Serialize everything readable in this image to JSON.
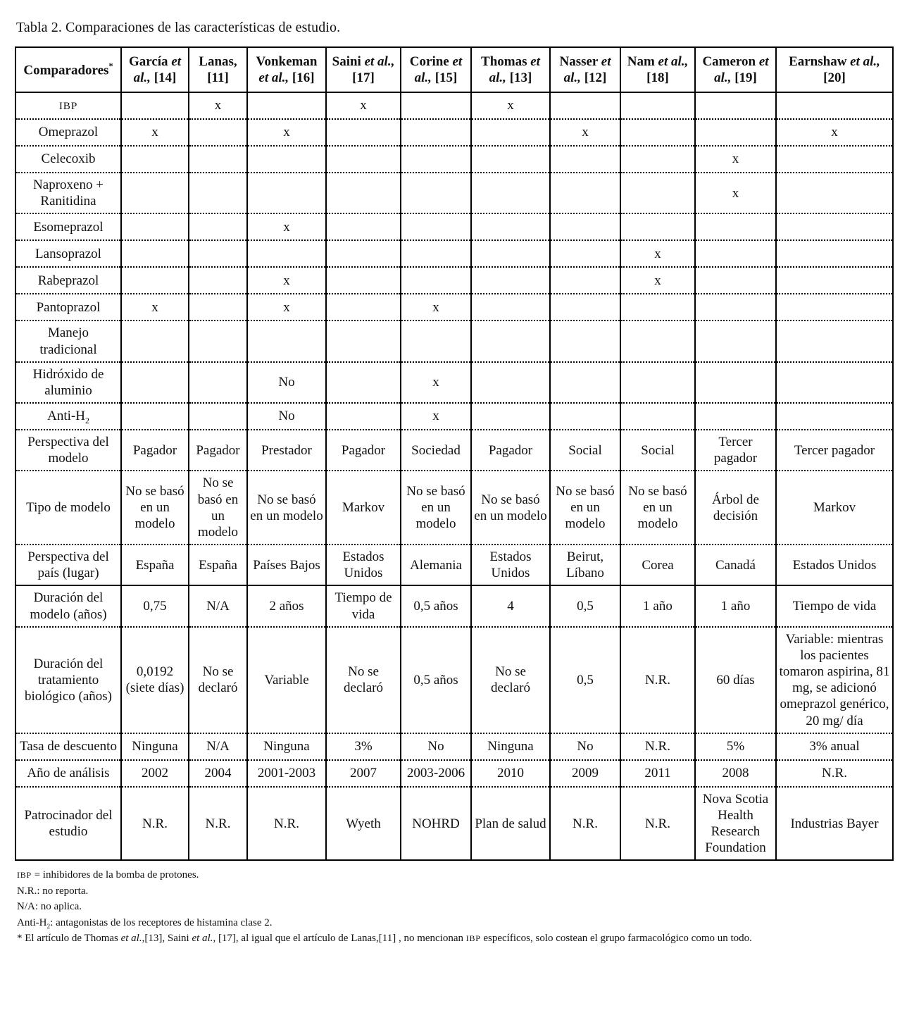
{
  "title": "Tabla 2. Comparaciones de las características de estudio.",
  "table": {
    "corner": {
      "label": "Comparadores",
      "superscript": "*"
    },
    "columns": [
      {
        "name": "García",
        "etal": "et al.,",
        "ref": "[14]"
      },
      {
        "name": "Lanas,",
        "etal": "",
        "ref": "[11]"
      },
      {
        "name": "Vonkeman",
        "etal": "et al.,",
        "ref": "[16]"
      },
      {
        "name": "Saini",
        "etal": "et al.,",
        "ref": "[17]"
      },
      {
        "name": "Corine",
        "etal": "et al.,",
        "ref": "[15]"
      },
      {
        "name": "Thomas",
        "etal": "et al.,",
        "ref": "[13]"
      },
      {
        "name": "Nasser",
        "etal": "et al.,",
        "ref": "[12]"
      },
      {
        "name": "Nam",
        "etal": "et al.,",
        "ref": "[18]"
      },
      {
        "name": "Cameron",
        "etal": "et al.,",
        "ref": "[19]"
      },
      {
        "name": "Earnshaw",
        "etal": "et al.,",
        "ref": "[20]"
      }
    ],
    "rows": [
      {
        "label": "IBP",
        "cells": [
          "",
          "x",
          "",
          "x",
          "",
          "x",
          "",
          "",
          "",
          ""
        ]
      },
      {
        "label": "Omeprazol",
        "cells": [
          "x",
          "",
          "x",
          "",
          "",
          "",
          "x",
          "",
          "",
          "x"
        ]
      },
      {
        "label": "Celecoxib",
        "cells": [
          "",
          "",
          "",
          "",
          "",
          "",
          "",
          "",
          "x",
          ""
        ]
      },
      {
        "label": "Naproxeno + Ranitidina",
        "cells": [
          "",
          "",
          "",
          "",
          "",
          "",
          "",
          "",
          "x",
          ""
        ]
      },
      {
        "label": "Esomeprazol",
        "cells": [
          "",
          "",
          "x",
          "",
          "",
          "",
          "",
          "",
          "",
          ""
        ]
      },
      {
        "label": "Lansoprazol",
        "cells": [
          "",
          "",
          "",
          "",
          "",
          "",
          "",
          "x",
          "",
          ""
        ]
      },
      {
        "label": "Rabeprazol",
        "cells": [
          "",
          "",
          "x",
          "",
          "",
          "",
          "",
          "x",
          "",
          ""
        ]
      },
      {
        "label": "Pantoprazol",
        "cells": [
          "x",
          "",
          "x",
          "",
          "x",
          "",
          "",
          "",
          "",
          ""
        ]
      },
      {
        "label": "Manejo tradicional",
        "cells": [
          "",
          "",
          "",
          "",
          "",
          "",
          "",
          "",
          "",
          ""
        ]
      },
      {
        "label": "Hidróxido de aluminio",
        "cells": [
          "",
          "",
          "No",
          "",
          "x",
          "",
          "",
          "",
          "",
          ""
        ]
      },
      {
        "label": "Anti-H₂",
        "cells": [
          "",
          "",
          "No",
          "",
          "x",
          "",
          "",
          "",
          "",
          ""
        ]
      },
      {
        "label": "Perspectiva del modelo",
        "cells": [
          "Pagador",
          "Pagador",
          "Prestador",
          "Pagador",
          "Sociedad",
          "Pagador",
          "Social",
          "Social",
          "Tercer pagador",
          "Tercer pagador"
        ]
      },
      {
        "label": "Tipo de modelo",
        "cells": [
          "No se basó en un modelo",
          "No se basó en un modelo",
          "No se basó en un modelo",
          "Markov",
          "No se basó en un modelo",
          "No se basó en un modelo",
          "No se basó en un modelo",
          "No se basó en un modelo",
          "Árbol de decisión",
          "Markov"
        ]
      },
      {
        "label": "Perspectiva del país (lugar)",
        "cells": [
          "España",
          "España",
          "Países Bajos",
          "Estados Unidos",
          "Alemania",
          "Estados Unidos",
          "Beirut, Líbano",
          "Corea",
          "Canadá",
          "Estados Unidos"
        ]
      },
      {
        "label": "Duración del modelo (años)",
        "cells": [
          "0,75",
          "N/A",
          "2 años",
          "Tiempo de vida",
          "0,5 años",
          "4",
          "0,5",
          "1 año",
          "1 año",
          "Tiempo de vida"
        ]
      },
      {
        "label": "Duración del tratamiento biológico (años)",
        "cells": [
          "0,0192 (siete días)",
          "No se declaró",
          "Variable",
          "No se declaró",
          "0,5 años",
          "No se declaró",
          "0,5",
          "N.R.",
          "60 días",
          "Variable: mientras los pacientes tomaron aspirina, 81 mg, se adicionó omeprazol genérico, 20 mg/ día"
        ]
      },
      {
        "label": "Tasa de descuento",
        "cells": [
          "Ninguna",
          "N/A",
          "Ninguna",
          "3%",
          "No",
          "Ninguna",
          "No",
          "N.R.",
          "5%",
          "3% anual"
        ]
      },
      {
        "label": "Año de análisis",
        "cells": [
          "2002",
          "2004",
          "2001-2003",
          "2007",
          "2003-2006",
          "2010",
          "2009",
          "2011",
          "2008",
          "N.R."
        ]
      },
      {
        "label": "Patrocinador del estudio",
        "cells": [
          "N.R.",
          "N.R.",
          "N.R.",
          "Wyeth",
          "NOHRD",
          "Plan de salud",
          "N.R.",
          "N.R.",
          "Nova Scotia Health Research Foundation",
          "Industrias Bayer"
        ]
      }
    ]
  },
  "footnotes": [
    "IBP = inhibidores de la bomba de protones.",
    "N.R.: no reporta.",
    "N/A: no aplica.",
    "Anti-H₂: antagonistas de los receptores de histamina clase 2.",
    "* El artículo de Thomas et al.,[13], Saini et al., [17], al igual que el artículo de Lanas,[11] , no mencionan IBP específicos, solo costean el grupo farmacológico como un todo."
  ]
}
